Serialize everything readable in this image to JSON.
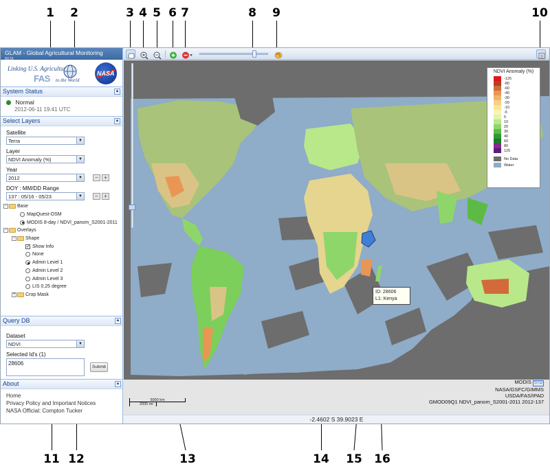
{
  "callouts": [
    "1",
    "2",
    "3",
    "4",
    "5",
    "6",
    "7",
    "8",
    "9",
    "10",
    "11",
    "12",
    "13",
    "14",
    "15",
    "16"
  ],
  "app": {
    "title": "GLAM - Global Agricultural Monitoring",
    "beta": "BETA"
  },
  "logos": {
    "tagline": "Linking U.S. Agriculture",
    "fas": "FAS",
    "to_world": "to the World",
    "nasa": "NASA"
  },
  "system_status": {
    "header": "System Status",
    "status": "Normal",
    "timestamp": "2012-06-11 19:41 UTC",
    "status_color": "#2b8a2b"
  },
  "select_layers": {
    "header": "Select Layers",
    "satellite_label": "Satellite",
    "satellite_value": "Terra",
    "layer_label": "Layer",
    "layer_value": "NDVI Anomaly (%)",
    "year_label": "Year",
    "year_value": "2012",
    "doy_label": "DOY : MM/DD Range",
    "doy_value": "137 : 05/16 - 05/23"
  },
  "tree": {
    "base": "Base",
    "mapquest": "MapQuest-OSM",
    "modis": "MODIS 8-day / NDVI_panom_S2001-2011",
    "overlays": "Overlays",
    "shape": "Shape",
    "show_info": "Show Info",
    "none": "None",
    "admin1": "Admin Level 1",
    "admin2": "Admin Level 2",
    "admin3": "Admin Level 3",
    "lis": "LIS 0.25 degree",
    "crop_mask": "Crop Mask"
  },
  "query_db": {
    "header": "Query DB",
    "dataset_label": "Dataset",
    "dataset_value": "NDVI",
    "selected_label": "Selected Id's (1)",
    "selected_value": "28606",
    "submit": "Submit"
  },
  "about": {
    "header": "About",
    "home": "Home",
    "privacy": "Privacy Policy and Important Notices",
    "official": "NASA Official: Compton Tucker"
  },
  "legend": {
    "title": "NDVI Anomaly (%)",
    "items": [
      {
        "label": "-125",
        "color": "#e8141a"
      },
      {
        "label": "-80",
        "color": "#b0402a"
      },
      {
        "label": "-60",
        "color": "#d26a3a"
      },
      {
        "label": "-40",
        "color": "#e99654"
      },
      {
        "label": "-30",
        "color": "#f0b46a"
      },
      {
        "label": "-20",
        "color": "#f6cf86"
      },
      {
        "label": "-10",
        "color": "#f8e59a"
      },
      {
        "label": "-5",
        "color": "#fbf3b3"
      },
      {
        "label": "5",
        "color": "#dff3b2"
      },
      {
        "label": "10",
        "color": "#b8e88a"
      },
      {
        "label": "20",
        "color": "#8fd66a"
      },
      {
        "label": "30",
        "color": "#5dbb45"
      },
      {
        "label": "40",
        "color": "#2f9a33"
      },
      {
        "label": "60",
        "color": "#1e7a2c"
      },
      {
        "label": "80",
        "color": "#8a2a8a"
      },
      {
        "label": "125",
        "color": "#5b1d7a"
      }
    ],
    "no_data": "No Data",
    "no_data_color": "#6d6d6d",
    "water": "Water",
    "water_color": "#8facc8"
  },
  "tooltip": {
    "id_label": "ID:",
    "id_value": "28606",
    "l1_label": "L1:",
    "l1_value": "Kenya"
  },
  "attribution": {
    "modis": "MODIS",
    "std": "STD",
    "line1": "NASA/GSFC/GIMMS",
    "line2": "USDA/FAS/IPAD",
    "line3": "GMOD09Q1 NDVI_panom_S2001-2011 2012-137"
  },
  "scale": {
    "km": "5000 km",
    "mi": "2000 mi"
  },
  "coords": "-2.4602 S 39.9023 E",
  "colors": {
    "water": "#8facc8",
    "no_data": "#6d6d6d",
    "header_blue": "#15428b"
  }
}
